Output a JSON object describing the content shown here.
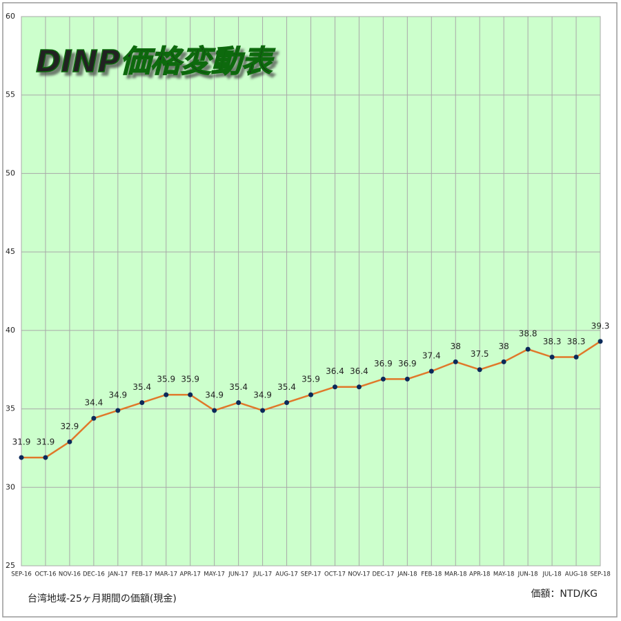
{
  "chart_data": {
    "type": "line",
    "title": "DINP価格変動表",
    "categories": [
      "SEP-16",
      "OCT-16",
      "NOV-16",
      "DEC-16",
      "JAN-17",
      "FEB-17",
      "MAR-17",
      "APR-17",
      "MAY-17",
      "JUN-17",
      "JUL-17",
      "AUG-17",
      "SEP-17",
      "OCT-17",
      "NOV-17",
      "DEC-17",
      "JAN-18",
      "FEB-18",
      "MAR-18",
      "APR-18",
      "MAY-18",
      "JUN-18",
      "JUL-18",
      "AUG-18",
      "SEP-18"
    ],
    "series": [
      {
        "name": "価額",
        "color": "#e0782a",
        "marker_color": "#0b2a5a",
        "values": [
          31.9,
          31.9,
          32.9,
          34.4,
          34.9,
          35.4,
          35.9,
          35.9,
          34.9,
          35.4,
          34.9,
          35.4,
          35.9,
          36.4,
          36.4,
          36.9,
          36.9,
          37.4,
          38,
          37.5,
          38,
          38.8,
          38.3,
          38.3,
          39.3
        ]
      }
    ],
    "ylim": [
      25,
      60
    ],
    "yticks": [
      25,
      30,
      35,
      40,
      45,
      50,
      55,
      60
    ],
    "grid": true,
    "background": "#ccffcc",
    "footnote_left": "台湾地域-25ヶ月期間の価額(現金)",
    "footnote_right": "価額：NTD/KG"
  }
}
